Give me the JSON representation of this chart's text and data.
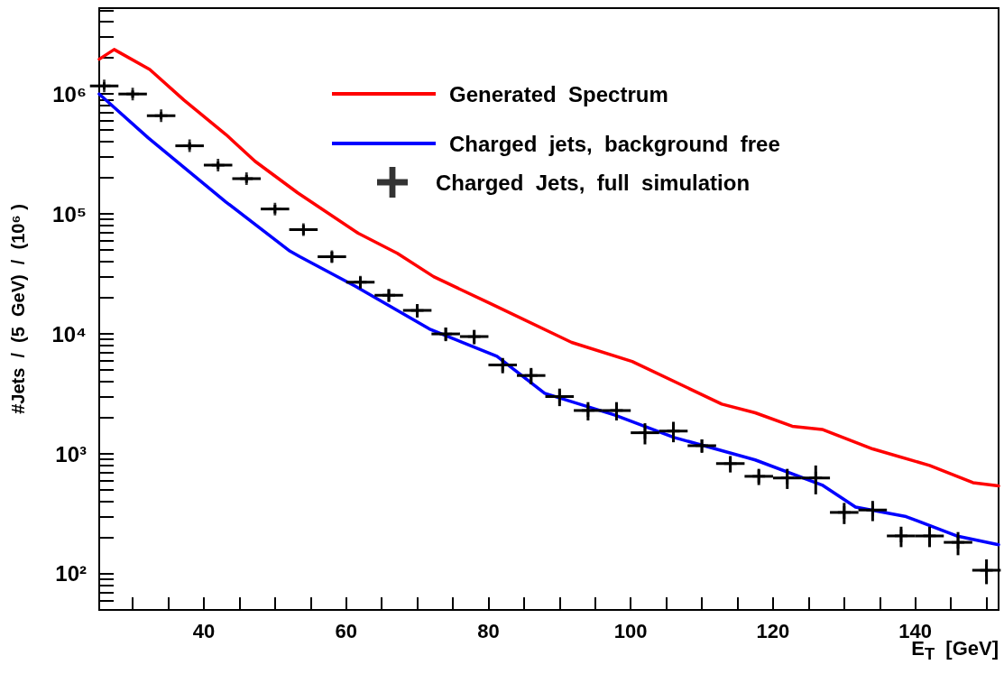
{
  "chart_data": {
    "type": "line",
    "xlabel": "E$_{T}$  [GeV]",
    "ylabel": "#Jets  /  (5  GeV)  /  (10⁶ )",
    "log": "y",
    "legend": "top right",
    "grid": false,
    "xlim": [
      25.3,
      151.7
    ],
    "xticks": [
      {
        "value": 30,
        "label": null
      },
      {
        "value": 35,
        "label": null
      },
      40,
      {
        "value": 45,
        "label": null
      },
      {
        "value": 50,
        "label": null
      },
      {
        "value": 55,
        "label": null
      },
      60,
      {
        "value": 65,
        "label": null
      },
      {
        "value": 70,
        "label": null
      },
      {
        "value": 75,
        "label": null
      },
      80,
      {
        "value": 85,
        "label": null
      },
      {
        "value": 90,
        "label": null
      },
      {
        "value": 95,
        "label": null
      },
      100,
      {
        "value": 105,
        "label": null
      },
      {
        "value": 110,
        "label": null
      },
      {
        "value": 115,
        "label": null
      },
      120,
      {
        "value": 125,
        "label": null
      },
      {
        "value": 130,
        "label": null
      },
      {
        "value": 135,
        "label": null
      },
      140,
      {
        "value": 145,
        "label": null
      },
      {
        "value": 150,
        "label": null
      }
    ],
    "ylim": [
      50,
      5200000
    ],
    "yticks": [
      {
        "value": 60,
        "label": null
      },
      {
        "value": 70,
        "label": null
      },
      {
        "value": 80,
        "label": null
      },
      {
        "value": 90,
        "label": null
      },
      {
        "value": 100,
        "label": "10²"
      },
      {
        "value": 200,
        "label": null
      },
      {
        "value": 300,
        "label": null
      },
      {
        "value": 400,
        "label": null
      },
      {
        "value": 500,
        "label": null
      },
      {
        "value": 600,
        "label": null
      },
      {
        "value": 700,
        "label": null
      },
      {
        "value": 800,
        "label": null
      },
      {
        "value": 900,
        "label": null
      },
      {
        "value": 1000,
        "label": "10³"
      },
      {
        "value": 2000,
        "label": null
      },
      {
        "value": 3000,
        "label": null
      },
      {
        "value": 4000,
        "label": null
      },
      {
        "value": 5000,
        "label": null
      },
      {
        "value": 6000,
        "label": null
      },
      {
        "value": 7000,
        "label": null
      },
      {
        "value": 8000,
        "label": null
      },
      {
        "value": 9000,
        "label": null
      },
      {
        "value": 10000,
        "label": "10⁴"
      },
      {
        "value": 20000,
        "label": null
      },
      {
        "value": 30000,
        "label": null
      },
      {
        "value": 40000,
        "label": null
      },
      {
        "value": 50000,
        "label": null
      },
      {
        "value": 60000,
        "label": null
      },
      {
        "value": 70000,
        "label": null
      },
      {
        "value": 80000,
        "label": null
      },
      {
        "value": 90000,
        "label": null
      },
      {
        "value": 100000,
        "label": "10⁵"
      },
      {
        "value": 200000,
        "label": null
      },
      {
        "value": 300000,
        "label": null
      },
      {
        "value": 400000,
        "label": null
      },
      {
        "value": 500000,
        "label": null
      },
      {
        "value": 600000,
        "label": null
      },
      {
        "value": 700000,
        "label": null
      },
      {
        "value": 800000,
        "label": null
      },
      {
        "value": 900000,
        "label": null
      },
      {
        "value": 1000000,
        "label": "10⁶"
      },
      {
        "value": 2000000,
        "label": null
      },
      {
        "value": 3000000,
        "label": null
      },
      {
        "value": 4000000,
        "label": null
      },
      {
        "value": 5000000,
        "label": null
      }
    ],
    "series": [
      {
        "name": "Generated  Spectrum",
        "color": "#ff0000",
        "x": [
          25.3,
          27.4,
          32.4,
          37.2,
          43.1,
          47.2,
          53.2,
          61.7,
          67.2,
          72.3,
          80.2,
          91.7,
          100.2,
          112.8,
          117.5,
          122.7,
          126.9,
          134,
          142,
          148.1,
          151.7
        ],
        "values": [
          1950000,
          2350000,
          1600000,
          890000,
          460000,
          275000,
          150000,
          69000,
          47000,
          30000,
          18000,
          8500,
          5900,
          2600,
          2200,
          1700,
          1600,
          1100,
          800,
          575,
          540
        ]
      },
      {
        "name": "Charged  jets,  background  free",
        "color": "#0000ff",
        "x": [
          25.3,
          32.2,
          43.1,
          52.1,
          53.5,
          61.3,
          71.7,
          81.2,
          87.9,
          97.8,
          106.1,
          117.5,
          126.9,
          131.6,
          138.7,
          145.8,
          151.7
        ],
        "values": [
          1000000,
          430000,
          126000,
          49000,
          44000,
          25000,
          11000,
          6500,
          3200,
          2100,
          1370,
          890,
          550,
          360,
          300,
          207,
          175
        ]
      },
      {
        "name": "Charged  Jets,  full  simulation",
        "type": "scatter",
        "marker": "cross",
        "color": "#000000",
        "x": [
          26,
          30,
          34,
          38,
          42,
          46,
          50,
          54,
          58,
          62,
          66,
          70,
          74,
          78,
          82,
          86,
          90,
          94,
          98,
          102,
          106,
          110,
          114,
          118,
          122,
          126,
          130,
          134,
          138,
          142,
          146,
          150
        ],
        "values": [
          1170000,
          1000000,
          660000,
          370000,
          255000,
          197000,
          110000,
          74000,
          44000,
          27000,
          21000,
          15700,
          10000,
          9500,
          5500,
          4500,
          3000,
          2300,
          2300,
          1500,
          1550,
          1170,
          830,
          650,
          630,
          630,
          325,
          340,
          207,
          207,
          183,
          107
        ],
        "xerrors": [
          2,
          2,
          2,
          2,
          2,
          2,
          2,
          2,
          2,
          2,
          2,
          2,
          2,
          2,
          2,
          2,
          2,
          2,
          2,
          2,
          2,
          2,
          2,
          2,
          2,
          2,
          2,
          2,
          2,
          2,
          2,
          2
        ],
        "errors": [
          80000,
          70000,
          45000,
          25000,
          18000,
          15000,
          9000,
          7000,
          4500,
          3000,
          2500,
          2000,
          1300,
          1300,
          800,
          700,
          500,
          400,
          400,
          300,
          300,
          150,
          130,
          100,
          120,
          170,
          65,
          65,
          40,
          40,
          40,
          25
        ]
      }
    ]
  }
}
